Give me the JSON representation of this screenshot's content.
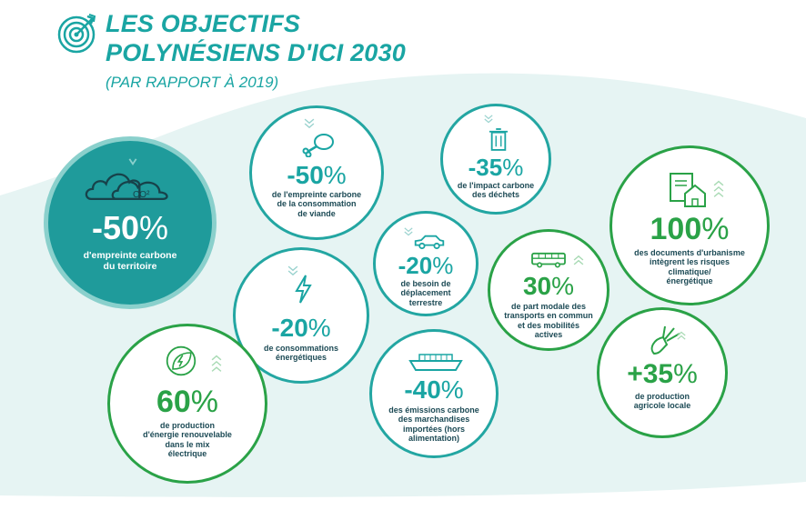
{
  "title_line1": "LES OBJECTIFS",
  "title_line2": "POLYNÉSIENS D'ICI 2030",
  "subtitle": "(PAR RAPPORT À 2019)",
  "colors": {
    "teal": "#1aa5a3",
    "green": "#2aa247",
    "dark_text": "#1c4a55",
    "filled_bg": "#1f9b9b"
  },
  "targets": [
    {
      "value": "-50",
      "unit": "%",
      "line1": "d'empreinte carbone",
      "line2": "du territoire",
      "icon": "cloud-co2-icon",
      "icon_label": "CO²"
    },
    {
      "value": "-50",
      "unit": "%",
      "line1": "de l'empreinte carbone",
      "line2": "de la consommation",
      "line3": "de viande",
      "icon": "meat-icon"
    },
    {
      "value": "-35",
      "unit": "%",
      "line1": "de l'impact carbone",
      "line2": "des déchets",
      "icon": "trash-can-icon"
    },
    {
      "value": "-20",
      "unit": "%",
      "line1": "de besoin de",
      "line2": "déplacement",
      "line3": "terrestre",
      "icon": "car-icon"
    },
    {
      "value": "-20",
      "unit": "%",
      "line1": "de consommations",
      "line2": "énergétiques",
      "icon": "lightning-icon"
    },
    {
      "value": "-40",
      "unit": "%",
      "line1": "des émissions carbone",
      "line2": "des marchandises",
      "line3": "importées (hors",
      "line4": "alimentation)",
      "icon": "ship-icon"
    },
    {
      "value": "30",
      "unit": "%",
      "line1": "de part modale des",
      "line2": "transports en commun",
      "line3": "et des mobilités",
      "line4": "actives",
      "icon": "bus-icon"
    },
    {
      "value": "100",
      "unit": "%",
      "line1": "des documents d'urbanisme",
      "line2": "intègrent les risques",
      "line3": "climatique/",
      "line4": "énergétique",
      "icon": "document-house-icon"
    },
    {
      "value": "60",
      "unit": "%",
      "line1": "de production",
      "line2": "d'énergie renouvelable",
      "line3": "dans le mix",
      "line4": "électrique",
      "icon": "renewable-energy-leaf-icon"
    },
    {
      "value": "+35",
      "unit": "%",
      "line1": "de production",
      "line2": "agricole locale",
      "icon": "vegetables-icon"
    }
  ]
}
